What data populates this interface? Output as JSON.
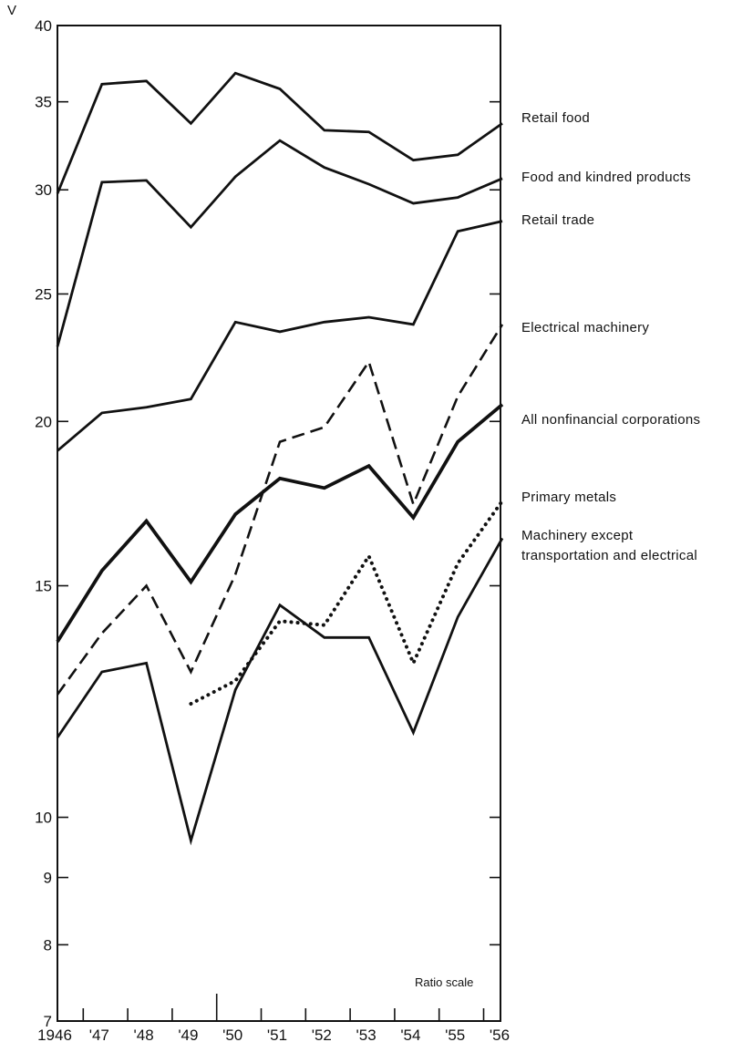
{
  "chart_data": {
    "type": "line",
    "title": "",
    "ylabel": "V",
    "xlabel": "",
    "y_scale": "log",
    "scale_note": "Ratio scale",
    "ylim": [
      7,
      40
    ],
    "y_ticks": [
      7,
      8,
      9,
      10,
      15,
      20,
      25,
      30,
      35,
      40
    ],
    "x_tick_labels": [
      "1946",
      "'47",
      "'48",
      "'49",
      "'50",
      "'51",
      "'52",
      "'53",
      "'54",
      "'55",
      "'56"
    ],
    "x": [
      1946,
      1947,
      1948,
      1949,
      1950,
      1951,
      1952,
      1953,
      1954,
      1955,
      1956
    ],
    "legend": "direct labels at right end of each line",
    "series": [
      {
        "name": "Retail food",
        "style": "solid",
        "values": [
          29.8,
          36.1,
          36.3,
          33.7,
          36.8,
          35.8,
          33.3,
          33.2,
          31.6,
          31.9,
          33.7
        ]
      },
      {
        "name": "Food and kindred products",
        "style": "solid",
        "values": [
          22.8,
          30.4,
          30.5,
          28.1,
          30.7,
          32.7,
          31.2,
          30.3,
          29.3,
          29.6,
          30.6
        ]
      },
      {
        "name": "Retail trade",
        "style": "solid",
        "values": [
          19.0,
          20.3,
          20.5,
          20.8,
          23.8,
          23.4,
          23.8,
          24.0,
          23.7,
          27.9,
          28.4
        ]
      },
      {
        "name": "Electrical machinery",
        "style": "dashed",
        "values": [
          12.4,
          13.8,
          15.0,
          12.9,
          15.3,
          19.3,
          19.8,
          22.2,
          17.3,
          20.9,
          23.7
        ]
      },
      {
        "name": "All nonfinancial corporations",
        "style": "solid-bold",
        "values": [
          13.6,
          15.4,
          16.8,
          15.1,
          17.0,
          18.1,
          17.8,
          18.5,
          16.9,
          19.3,
          20.6
        ]
      },
      {
        "name": "Primary metals",
        "style": "dotted",
        "values": [
          null,
          null,
          null,
          12.2,
          12.7,
          14.1,
          14.0,
          15.8,
          13.1,
          15.6,
          17.4
        ]
      },
      {
        "name": "Machinery except transportation and electrical",
        "style": "solid",
        "values": [
          11.5,
          12.9,
          13.1,
          9.6,
          12.5,
          14.5,
          13.7,
          13.7,
          11.6,
          14.2,
          16.3
        ]
      }
    ],
    "label_text": [
      "Retail food",
      "Food and kindred products",
      "Retail trade",
      "Electrical machinery",
      "All nonfinancial corporations",
      "Primary metals",
      "Machinery except",
      "transportation and electrical"
    ]
  }
}
